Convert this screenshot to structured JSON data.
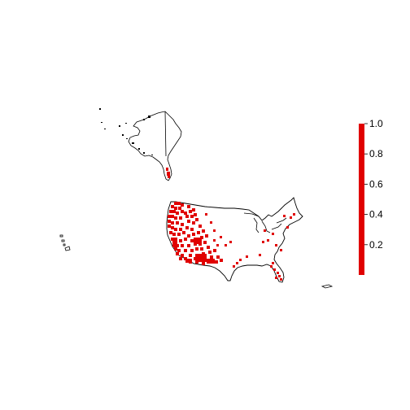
{
  "colors": {
    "background": "#ffffff",
    "outline": "#000000",
    "fill": "#e00000",
    "legend_bar": "#e00000"
  },
  "legend": {
    "type": "continuous-colorbar",
    "range": [
      0,
      1
    ],
    "ticks": [
      {
        "value": 1.0,
        "label": "1.0"
      },
      {
        "value": 0.8,
        "label": "0.8"
      },
      {
        "value": 0.6,
        "label": "0.6"
      },
      {
        "value": 0.4,
        "label": "0.4"
      },
      {
        "value": 0.2,
        "label": "0.2"
      }
    ],
    "placement": "right"
  },
  "map": {
    "regions": [
      "alaska",
      "hawaii",
      "contiguous-us",
      "puerto-rico"
    ],
    "shaded_value": 1.0
  }
}
